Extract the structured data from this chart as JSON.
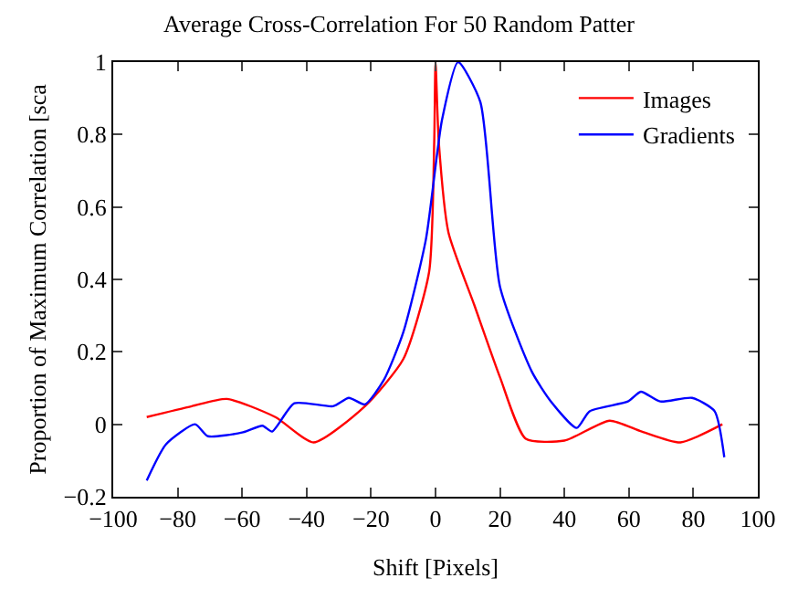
{
  "chart_data": {
    "type": "line",
    "title": "Average Cross-Correlation For 50 Random Patter",
    "xlabel": "Shift [Pixels]",
    "ylabel": "Proportion of Maximum Correlation [sca",
    "xlim": [
      -100,
      100
    ],
    "xticks": [
      -100,
      -80,
      -60,
      -40,
      -20,
      0,
      20,
      40,
      60,
      80,
      100
    ],
    "ylim": [
      -0.2,
      1
    ],
    "yticks": [
      -0.2,
      0,
      0.2,
      0.4,
      0.6,
      0.8,
      1
    ],
    "legend": "top right",
    "marker": "none",
    "line_style": "solid",
    "series": [
      {
        "name": "Images",
        "color": "#ff0000",
        "x": [
          -89.6,
          -75.6,
          -64.7,
          -49.7,
          -37.8,
          -21.9,
          -10,
          -2,
          -0.4,
          0,
          1,
          4,
          12,
          20,
          28,
          40,
          54,
          64,
          76,
          89
        ],
        "values": [
          0.02,
          0.05,
          0.07,
          0.02,
          -0.05,
          0.05,
          0.18,
          0.42,
          0.78,
          1.0,
          0.78,
          0.53,
          0.33,
          0.13,
          -0.04,
          -0.045,
          0.01,
          -0.02,
          -0.05,
          0.0
        ]
      },
      {
        "name": "Gradients",
        "color": "#0000ff",
        "x": [
          -89.6,
          -83.6,
          -74.6,
          -70.6,
          -59.7,
          -53.7,
          -50.7,
          -43.8,
          -31.8,
          -26.9,
          -21.9,
          -16,
          -10,
          -3,
          2,
          7,
          13.9,
          20,
          29.9,
          35.8,
          43.8,
          47.8,
          59.7,
          63.7,
          69.7,
          79.6,
          86.6,
          89.6
        ],
        "values": [
          -0.155,
          -0.055,
          0.0,
          -0.033,
          -0.022,
          -0.004,
          -0.02,
          0.058,
          0.05,
          0.073,
          0.055,
          0.123,
          0.254,
          0.51,
          0.84,
          1.0,
          0.89,
          0.38,
          0.145,
          0.063,
          -0.01,
          0.036,
          0.063,
          0.09,
          0.063,
          0.073,
          0.036,
          -0.091
        ]
      }
    ]
  }
}
